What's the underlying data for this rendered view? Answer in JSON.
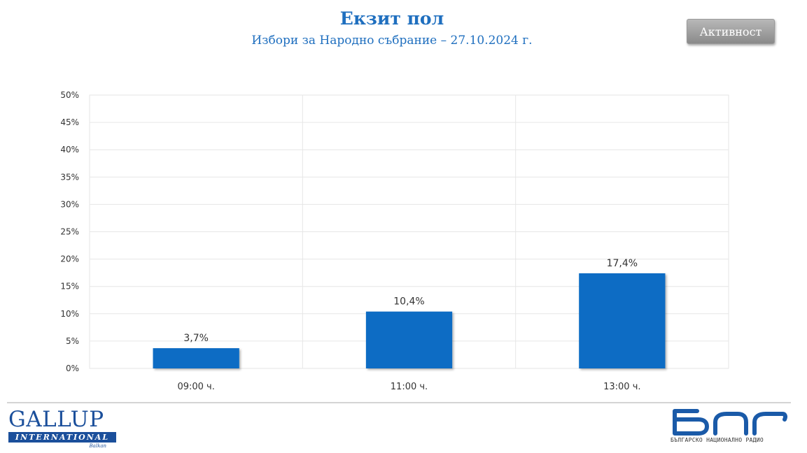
{
  "header": {
    "title": "Екзит пол",
    "subtitle": "Избори за Народно събрание – 27.10.2024 г.",
    "activity_button": "Активност"
  },
  "chart_data": {
    "type": "bar",
    "categories": [
      "09:00 ч.",
      "11:00 ч.",
      "13:00 ч."
    ],
    "values": [
      3.7,
      10.4,
      17.4
    ],
    "data_labels": [
      "3,7%",
      "10,4%",
      "17,4%"
    ],
    "y_ticks": [
      "0%",
      "5%",
      "10%",
      "15%",
      "20%",
      "25%",
      "30%",
      "35%",
      "40%",
      "45%",
      "50%"
    ],
    "ylim": [
      0,
      50
    ],
    "grid": true,
    "bar_color": "#0b6cc4",
    "title": "",
    "xlabel": "",
    "ylabel": ""
  },
  "footer": {
    "gallup_name": "GALLUP",
    "gallup_international": "INTERNATIONAL",
    "gallup_region": "Balkan",
    "bnr_tagline": "БЪЛГАРСКО НАЦИОНАЛНО РАДИО",
    "brand_color_gallup": "#1b4f9b",
    "brand_color_bnr": "#1a5aa8"
  }
}
